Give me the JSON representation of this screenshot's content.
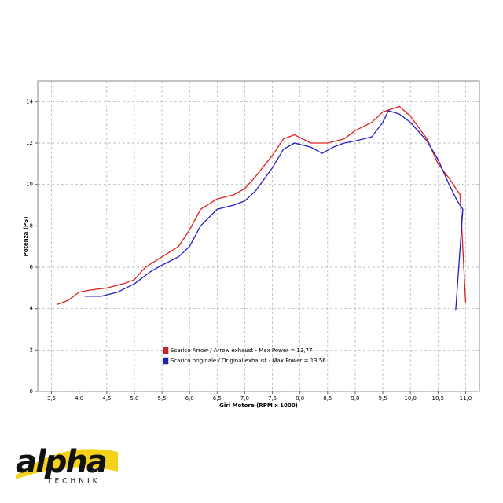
{
  "chart_data": {
    "type": "line",
    "x_label": "Giri Motore (RPM x 1000)",
    "y_label": "Potenza (PS)",
    "xlim": [
      3.25,
      11.25
    ],
    "ylim": [
      0,
      15
    ],
    "xticks": [
      {
        "value": 3.5,
        "label": "3,5"
      },
      {
        "value": 4.0,
        "label": "4,0"
      },
      {
        "value": 4.5,
        "label": "4,5"
      },
      {
        "value": 5.0,
        "label": "5,0"
      },
      {
        "value": 5.5,
        "label": "5,5"
      },
      {
        "value": 6.0,
        "label": "6,0"
      },
      {
        "value": 6.5,
        "label": "6,5"
      },
      {
        "value": 7.0,
        "label": "7,0"
      },
      {
        "value": 7.5,
        "label": "7,5"
      },
      {
        "value": 8.0,
        "label": "8,0"
      },
      {
        "value": 8.5,
        "label": "8,5"
      },
      {
        "value": 9.0,
        "label": "9,0"
      },
      {
        "value": 9.5,
        "label": "9,5"
      },
      {
        "value": 10.0,
        "label": "10,0"
      },
      {
        "value": 10.5,
        "label": "10,5"
      },
      {
        "value": 11.0,
        "label": "11,0"
      }
    ],
    "yticks": [
      0,
      2,
      4,
      6,
      8,
      10,
      12,
      14
    ],
    "grid": true,
    "legend": "lower left",
    "series": [
      {
        "name": "Scarico Arrow / Arrow exhaust - Max Power = 13,77",
        "color": "#e02020",
        "x": [
          3.6,
          3.8,
          4.0,
          4.2,
          4.5,
          4.8,
          5.0,
          5.2,
          5.5,
          5.8,
          6.0,
          6.2,
          6.5,
          6.8,
          7.0,
          7.2,
          7.5,
          7.7,
          7.9,
          8.2,
          8.5,
          8.8,
          9.0,
          9.3,
          9.5,
          9.8,
          10.0,
          10.3,
          10.5,
          10.7,
          10.9,
          11.0
        ],
        "values": [
          4.2,
          4.4,
          4.8,
          4.9,
          5.0,
          5.2,
          5.4,
          6.0,
          6.5,
          7.0,
          7.8,
          8.8,
          9.3,
          9.5,
          9.8,
          10.4,
          11.4,
          12.2,
          12.4,
          12.0,
          12.0,
          12.2,
          12.6,
          13.0,
          13.5,
          13.77,
          13.3,
          12.2,
          11.0,
          10.3,
          9.5,
          4.3
        ]
      },
      {
        "name": "Scarico originale / Original exhaust - Max Power = 13,56",
        "color": "#2020c8",
        "x": [
          4.1,
          4.4,
          4.7,
          5.0,
          5.3,
          5.5,
          5.8,
          6.0,
          6.2,
          6.5,
          6.8,
          7.0,
          7.2,
          7.5,
          7.7,
          7.9,
          8.2,
          8.4,
          8.6,
          8.8,
          9.0,
          9.3,
          9.5,
          9.6,
          9.8,
          10.0,
          10.3,
          10.5,
          10.7,
          10.85,
          10.95,
          10.82
        ],
        "values": [
          4.6,
          4.6,
          4.8,
          5.2,
          5.8,
          6.1,
          6.5,
          7.0,
          8.0,
          8.8,
          9.0,
          9.2,
          9.7,
          10.8,
          11.7,
          12.0,
          11.8,
          11.5,
          11.8,
          12.0,
          12.1,
          12.3,
          13.0,
          13.56,
          13.4,
          13.0,
          12.1,
          11.2,
          10.0,
          9.2,
          8.8,
          3.9
        ]
      }
    ]
  },
  "logo": {
    "name": "alpha",
    "subtitle": "TECHNIK"
  }
}
